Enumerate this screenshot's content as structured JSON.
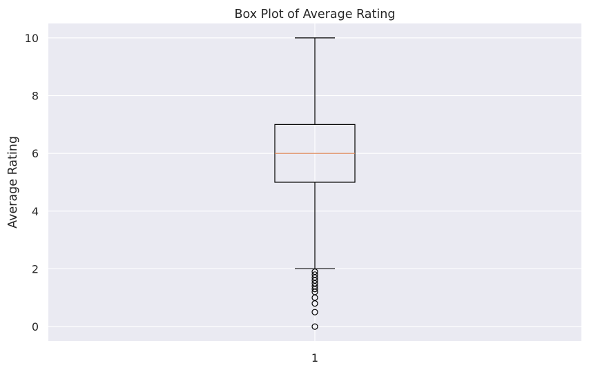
{
  "chart_data": {
    "type": "box",
    "title": "Box Plot of Average Rating",
    "xlabel": "",
    "ylabel": "Average Rating",
    "categories": [
      "1"
    ],
    "ylim": [
      -0.5,
      10.5
    ],
    "yticks": [
      0,
      2,
      4,
      6,
      8,
      10
    ],
    "grid": true,
    "colors": {
      "background": "#eaeaf2",
      "grid": "#ffffff",
      "box": "#000000",
      "median": "#dd8452"
    },
    "boxes": [
      {
        "label": "1",
        "whisker_low": 2,
        "q1": 5,
        "median": 6,
        "q3": 7,
        "whisker_high": 10,
        "outliers": [
          1.9,
          1.8,
          1.7,
          1.6,
          1.5,
          1.4,
          1.3,
          1.2,
          1.0,
          0.8,
          0.5,
          0.0
        ]
      }
    ]
  }
}
